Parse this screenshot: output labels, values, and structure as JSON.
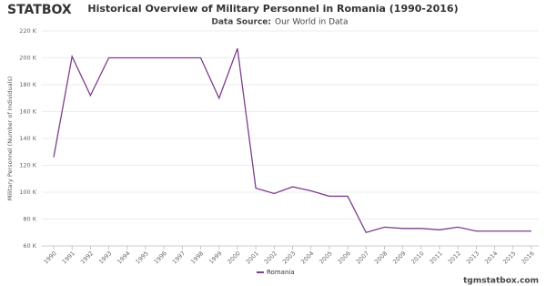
{
  "brand": "STATBOX",
  "footer": "tgmstatbox.com",
  "chart_data": {
    "type": "line",
    "title": "Historical Overview of Military Personnel in Romania (1990-2016)",
    "source_label": "Data Source:",
    "source": "Our World in Data",
    "y_label": "Military Personnel (Number of Individuals)",
    "categories": [
      "1990",
      "1991",
      "1992",
      "1993",
      "1994",
      "1995",
      "1996",
      "1997",
      "1998",
      "1999",
      "2000",
      "2001",
      "2002",
      "2003",
      "2004",
      "2005",
      "2006",
      "2007",
      "2008",
      "2009",
      "2010",
      "2011",
      "2012",
      "2013",
      "2014",
      "2015",
      "2016"
    ],
    "series": [
      {
        "name": "Romania",
        "color": "#7b3f8c",
        "values": [
          126000,
          201000,
          172000,
          200000,
          200000,
          200000,
          200000,
          200000,
          200000,
          170000,
          207000,
          103000,
          99000,
          104000,
          101000,
          97000,
          97000,
          70000,
          74000,
          73000,
          73000,
          72000,
          74000,
          71000,
          71000,
          71000,
          71000
        ]
      }
    ],
    "ylim": [
      60000,
      220000
    ],
    "yticks": [
      {
        "value": 60000,
        "label": "60 K"
      },
      {
        "value": 80000,
        "label": "80 K"
      },
      {
        "value": 100000,
        "label": "100 K"
      },
      {
        "value": 120000,
        "label": "120 K"
      },
      {
        "value": 140000,
        "label": "140 K"
      },
      {
        "value": 160000,
        "label": "160 K"
      },
      {
        "value": 180000,
        "label": "180 K"
      },
      {
        "value": 200000,
        "label": "200 K"
      },
      {
        "value": 220000,
        "label": "220 K"
      }
    ],
    "grid": true
  }
}
